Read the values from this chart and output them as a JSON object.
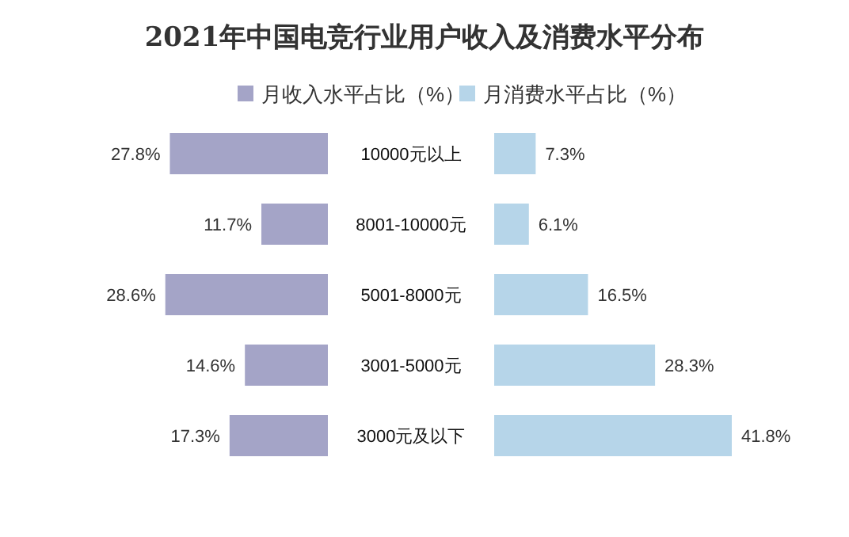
{
  "chart_data": [
    {
      "type": "bar",
      "orientation": "horizontal",
      "title": "2021年中国电竞行业用户收入及消费水平分布",
      "legend": "top",
      "categories": [
        "10000元以上",
        "8001-10000元",
        "5001-8000元",
        "3001-5000元",
        "3000元及以下"
      ],
      "series": [
        {
          "name": "月收入水平占比（%）",
          "color": "#a4a4c7",
          "values": [
            27.8,
            11.7,
            28.6,
            14.6,
            17.3
          ],
          "value_labels": [
            "27.8%",
            "11.7%",
            "28.6%",
            "14.6%",
            "17.3%"
          ]
        }
      ]
    },
    {
      "type": "bar",
      "orientation": "horizontal",
      "legend": "top",
      "categories": [
        null,
        null,
        null,
        null,
        null
      ],
      "series": [
        {
          "name": "月消费水平占比（%）",
          "color": "#b6d5e9",
          "values": [
            7.3,
            6.1,
            16.5,
            28.3,
            41.8
          ],
          "value_labels": [
            "7.3%",
            "6.1%",
            "16.5%",
            "28.3%",
            "41.8%"
          ]
        }
      ]
    }
  ]
}
